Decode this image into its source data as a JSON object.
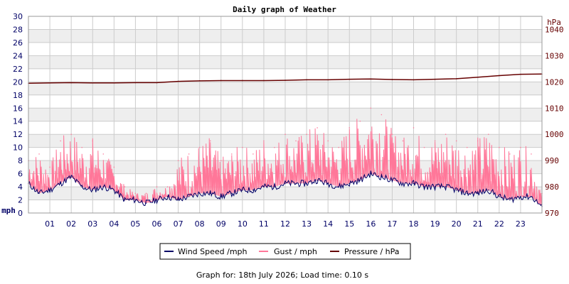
{
  "chart_data": {
    "type": "line",
    "title": "Daily graph of Weather",
    "footer": "Graph for: 18th July 2026; Load time: 0.10 s",
    "left_axis": {
      "unit_label": "mph",
      "range": [
        0,
        30
      ],
      "ticks": [
        0,
        2,
        4,
        6,
        8,
        10,
        12,
        14,
        16,
        18,
        20,
        22,
        24,
        26,
        28,
        30
      ],
      "color": "#000066"
    },
    "right_axis": {
      "unit_label": "hPa",
      "range": [
        970,
        1045
      ],
      "ticks": [
        970,
        980,
        990,
        1000,
        1010,
        1020,
        1030,
        1040
      ],
      "color": "#660000"
    },
    "x_labels": [
      "01",
      "02",
      "03",
      "04",
      "05",
      "06",
      "07",
      "08",
      "09",
      "10",
      "11",
      "12",
      "13",
      "14",
      "15",
      "16",
      "17",
      "18",
      "19",
      "20",
      "21",
      "22",
      "23"
    ],
    "x_range_hours": [
      0,
      24
    ],
    "grid": true,
    "legend_position": "bottom",
    "series": [
      {
        "name": "Wind Speed /mph",
        "axis": "left",
        "color": "#000066",
        "x": [
          0,
          0.5,
          1,
          1.5,
          2,
          2.5,
          3,
          3.5,
          4,
          4.5,
          5,
          5.5,
          6,
          6.5,
          7,
          7.5,
          8,
          8.5,
          9,
          9.5,
          10,
          10.5,
          11,
          11.5,
          12,
          12.5,
          13,
          13.5,
          14,
          14.5,
          15,
          15.5,
          16,
          16.5,
          17,
          17.5,
          18,
          18.5,
          19,
          19.5,
          20,
          20.5,
          21,
          21.5,
          22,
          22.5,
          23,
          23.5,
          24
        ],
        "values": [
          4.5,
          3,
          3.5,
          4.5,
          5.5,
          4,
          3.5,
          4,
          3.5,
          2,
          2,
          1.5,
          2,
          2.5,
          2,
          2.5,
          3,
          3,
          2.5,
          3,
          3.5,
          3.5,
          4,
          4,
          4.5,
          4.5,
          4.5,
          5,
          4.5,
          4,
          4.5,
          5,
          6,
          5.5,
          5,
          4.5,
          4.5,
          4,
          4,
          4,
          3.5,
          3,
          3,
          3.5,
          2.5,
          2,
          2.5,
          2.5,
          1
        ]
      },
      {
        "name": "Gust / mph",
        "axis": "left",
        "color": "#ff7799",
        "x": [
          0,
          0.5,
          1,
          1.5,
          2,
          2.5,
          3,
          3.5,
          4,
          4.5,
          5,
          5.5,
          6,
          6.5,
          7,
          7.5,
          8,
          8.5,
          9,
          9.5,
          10,
          10.5,
          11,
          11.5,
          12,
          12.5,
          13,
          13.5,
          14,
          14.5,
          15,
          15.5,
          16,
          16.5,
          17,
          17.5,
          18,
          18.5,
          19,
          19.5,
          20,
          20.5,
          21,
          21.5,
          22,
          22.5,
          23,
          23.5,
          24
        ],
        "values": [
          8,
          9,
          7,
          11,
          12,
          10,
          11,
          9,
          7,
          4,
          3,
          3,
          4,
          4,
          8,
          9,
          10,
          11,
          8,
          9,
          10,
          9,
          11,
          10,
          12,
          11,
          12,
          13,
          11,
          10,
          13,
          14,
          16,
          15,
          12,
          11,
          13,
          10,
          11,
          12,
          11,
          10,
          11,
          12,
          10,
          9,
          10,
          9,
          3
        ]
      },
      {
        "name": "Pressure / hPa",
        "axis": "right",
        "color": "#660000",
        "x": [
          0,
          1,
          2,
          3,
          4,
          5,
          6,
          7,
          8,
          9,
          10,
          11,
          12,
          13,
          14,
          15,
          16,
          17,
          18,
          19,
          20,
          21,
          22,
          23,
          24
        ],
        "values": [
          1019.5,
          1019.6,
          1019.7,
          1019.6,
          1019.6,
          1019.7,
          1019.7,
          1020.2,
          1020.4,
          1020.5,
          1020.5,
          1020.5,
          1020.6,
          1020.8,
          1020.8,
          1021.0,
          1021.1,
          1020.9,
          1020.8,
          1021.0,
          1021.2,
          1021.8,
          1022.4,
          1022.9,
          1023.0
        ]
      }
    ]
  }
}
